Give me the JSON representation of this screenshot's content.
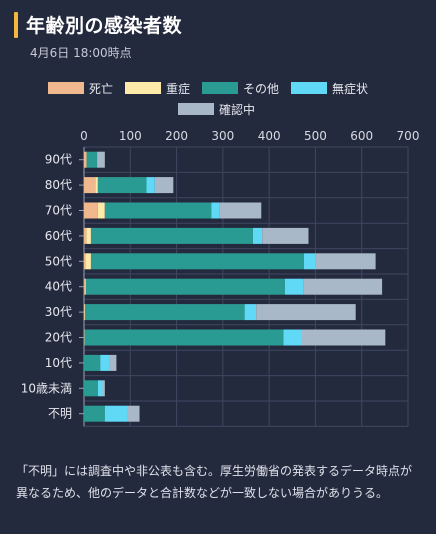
{
  "header": {
    "title": "年齢別の感染者数",
    "subtitle": "4月6日 18:00時点"
  },
  "note": "「不明」には調査中や非公表も含む。厚生労働省の発表するデータ時点が異なるため、他のデータと合計数などが一致しない場合がありうる。",
  "chart_data": {
    "type": "bar",
    "orientation": "horizontal",
    "stacked": true,
    "title": "",
    "xlabel": "",
    "ylabel": "",
    "xlim": [
      0,
      700
    ],
    "x_ticks": [
      "0",
      "100",
      "200",
      "300",
      "400",
      "500",
      "600",
      "700"
    ],
    "grid": true,
    "legend_position": "top",
    "categories": [
      "90代",
      "80代",
      "70代",
      "60代",
      "50代",
      "40代",
      "30代",
      "20代",
      "10代",
      "10歳未満",
      "不明"
    ],
    "series": [
      {
        "name": "死亡",
        "color": "#f0b98d",
        "values": [
          5,
          25,
          30,
          5,
          3,
          2,
          1,
          1,
          0,
          0,
          0
        ]
      },
      {
        "name": "重症",
        "color": "#fde9a8",
        "values": [
          1,
          5,
          15,
          10,
          12,
          2,
          1,
          0,
          0,
          0,
          0
        ]
      },
      {
        "name": "その他",
        "color": "#2a9b92",
        "values": [
          22,
          105,
          230,
          350,
          460,
          430,
          345,
          430,
          35,
          30,
          45
        ]
      },
      {
        "name": "無症状",
        "color": "#5fd9f5",
        "values": [
          2,
          18,
          18,
          20,
          25,
          40,
          25,
          40,
          20,
          10,
          50
        ]
      },
      {
        "name": "確認中",
        "color": "#a9b8c8",
        "values": [
          15,
          40,
          90,
          100,
          130,
          170,
          215,
          180,
          15,
          5,
          25
        ]
      }
    ]
  }
}
